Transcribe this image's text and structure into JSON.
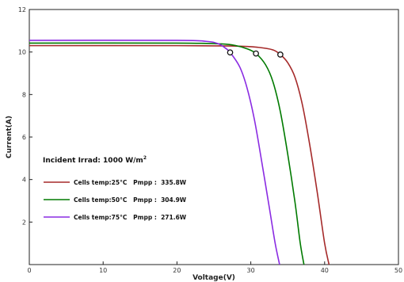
{
  "chart_data": {
    "type": "line",
    "xlabel": "Voltage(V)",
    "ylabel": "Current(A)",
    "xlim": [
      0,
      50
    ],
    "ylim": [
      0,
      12
    ],
    "xticks": [
      0,
      10,
      20,
      30,
      40,
      50
    ],
    "yticks": [
      2,
      4,
      6,
      8,
      10,
      12
    ],
    "grid": false,
    "legend_position": "lower-left",
    "annotation": {
      "text": "Incident Irrad:  1000 W/m",
      "superscript": "2"
    },
    "series": [
      {
        "name": "Cells temp:25°C   Pmpp :  335.8W",
        "color": "#a52a2a",
        "mpp": [
          34.0,
          9.88
        ],
        "x": [
          0,
          20,
          28,
          31,
          33,
          34,
          35,
          36,
          37,
          38,
          39,
          40,
          40.6
        ],
        "y": [
          10.3,
          10.3,
          10.28,
          10.22,
          10.1,
          9.88,
          9.5,
          8.8,
          7.5,
          5.6,
          3.4,
          1.0,
          0
        ]
      },
      {
        "name": "Cells temp:50°C   Pmpp :  304.9W",
        "color": "#007a00",
        "mpp": [
          30.7,
          9.93
        ],
        "x": [
          0,
          20,
          26,
          28,
          29.5,
          30.7,
          32,
          33,
          34,
          35,
          36,
          36.7,
          37.2
        ],
        "y": [
          10.42,
          10.42,
          10.38,
          10.3,
          10.15,
          9.93,
          9.4,
          8.6,
          7.2,
          5.2,
          2.9,
          1.0,
          0
        ]
      },
      {
        "name": "Cells temp:75°C   Pmpp :  271.6W",
        "color": "#8a2be2",
        "mpp": [
          27.2,
          9.98
        ],
        "x": [
          0,
          20,
          24,
          25.5,
          26.5,
          27.2,
          28.5,
          29.5,
          30.5,
          31.5,
          32.5,
          33.3,
          33.9
        ],
        "y": [
          10.55,
          10.55,
          10.5,
          10.4,
          10.2,
          9.98,
          9.3,
          8.3,
          6.8,
          4.8,
          2.7,
          1.0,
          0
        ]
      }
    ]
  }
}
